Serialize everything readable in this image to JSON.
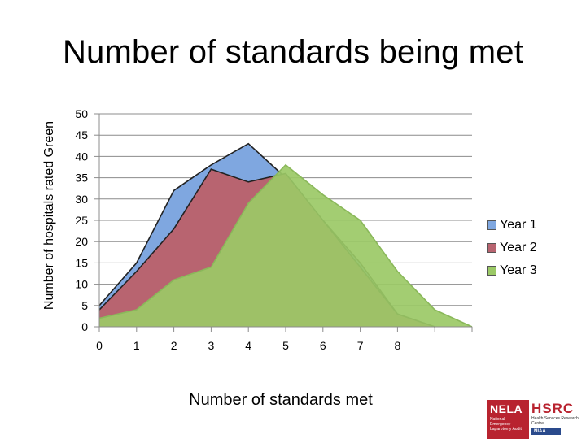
{
  "chart_data": {
    "type": "area",
    "title": "Number of standards being met",
    "xlabel": "Number of standards met",
    "ylabel": "Number of hospitals rated Green",
    "x": [
      0,
      1,
      2,
      3,
      4,
      5,
      6,
      7,
      8,
      9,
      10
    ],
    "x_tick_labels": [
      "0",
      "1",
      "2",
      "3",
      "4",
      "5",
      "6",
      "7",
      "8"
    ],
    "ylim": [
      0,
      50
    ],
    "y_ticks": [
      "0",
      "5",
      "10",
      "15",
      "20",
      "25",
      "30",
      "35",
      "40",
      "45",
      "50"
    ],
    "grid": true,
    "legend": "right",
    "series": [
      {
        "name": "Year 1",
        "color": "#7fa7e0",
        "values": [
          5,
          15,
          32,
          38,
          43,
          35,
          25,
          15,
          3,
          0,
          null
        ]
      },
      {
        "name": "Year 2",
        "color": "#b86470",
        "values": [
          4,
          13,
          23,
          37,
          34,
          36,
          25,
          14,
          3,
          0,
          null
        ]
      },
      {
        "name": "Year 3",
        "color": "#9bc966",
        "values": [
          2,
          4,
          11,
          14,
          29,
          38,
          31,
          25,
          13,
          4,
          0
        ]
      }
    ]
  },
  "logo": {
    "left_text": "NELA",
    "left_sub": "National Emergency Laparotomy Audit",
    "right_text": "HSRC",
    "right_sub": "Health Services Research Centre",
    "badge": "NIAA"
  }
}
